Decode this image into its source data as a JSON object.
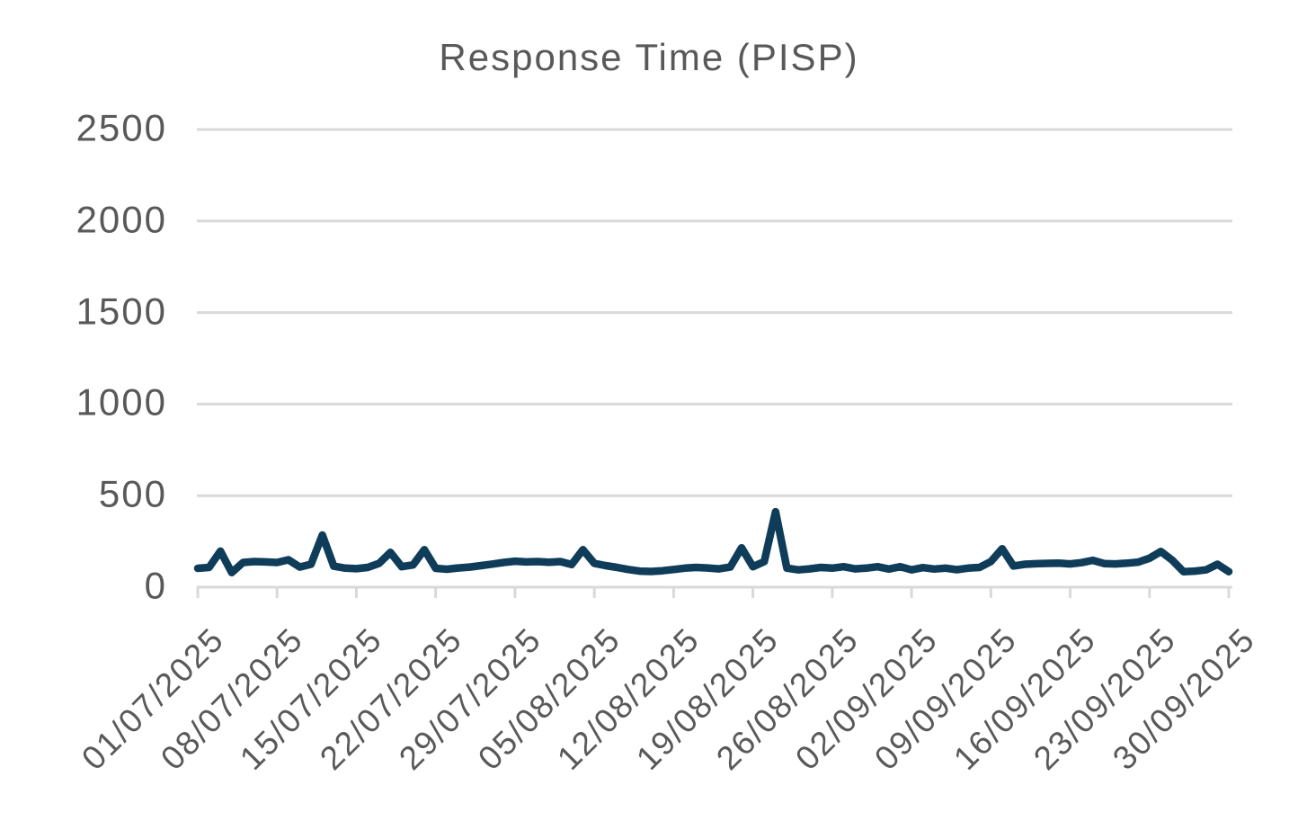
{
  "title": "Response Time (PISP)",
  "colors": {
    "background": "#ffffff",
    "title_text": "#595959",
    "axis_label_text": "#595959",
    "gridline": "#d9d9d9",
    "axis_line": "#d9d9d9",
    "series_line": "#0e3c59"
  },
  "chart_data": {
    "type": "line",
    "title": "Response Time (PISP)",
    "xlabel": "",
    "ylabel": "",
    "ylim": [
      0,
      2500
    ],
    "y_ticks": [
      0,
      500,
      1000,
      1500,
      2000,
      2500
    ],
    "grid": "horizontal",
    "legend": "none",
    "x_label_rotation_deg": 45,
    "x_tick_interval_days": 7,
    "x_tick_labels": [
      "01/07/2025",
      "08/07/2025",
      "15/07/2025",
      "22/07/2025",
      "29/07/2025",
      "05/08/2025",
      "12/08/2025",
      "19/08/2025",
      "26/08/2025",
      "02/09/2025",
      "09/09/2025",
      "16/09/2025",
      "23/09/2025",
      "30/09/2025"
    ],
    "x": [
      "01/07/2025",
      "02/07/2025",
      "03/07/2025",
      "04/07/2025",
      "05/07/2025",
      "06/07/2025",
      "07/07/2025",
      "08/07/2025",
      "09/07/2025",
      "10/07/2025",
      "11/07/2025",
      "12/07/2025",
      "13/07/2025",
      "14/07/2025",
      "15/07/2025",
      "16/07/2025",
      "17/07/2025",
      "18/07/2025",
      "19/07/2025",
      "20/07/2025",
      "21/07/2025",
      "22/07/2025",
      "23/07/2025",
      "24/07/2025",
      "25/07/2025",
      "26/07/2025",
      "27/07/2025",
      "28/07/2025",
      "29/07/2025",
      "30/07/2025",
      "31/07/2025",
      "01/08/2025",
      "02/08/2025",
      "03/08/2025",
      "04/08/2025",
      "05/08/2025",
      "06/08/2025",
      "07/08/2025",
      "08/08/2025",
      "09/08/2025",
      "10/08/2025",
      "11/08/2025",
      "12/08/2025",
      "13/08/2025",
      "14/08/2025",
      "15/08/2025",
      "16/08/2025",
      "17/08/2025",
      "18/08/2025",
      "19/08/2025",
      "20/08/2025",
      "21/08/2025",
      "22/08/2025",
      "23/08/2025",
      "24/08/2025",
      "25/08/2025",
      "26/08/2025",
      "27/08/2025",
      "28/08/2025",
      "29/08/2025",
      "30/08/2025",
      "31/08/2025",
      "01/09/2025",
      "02/09/2025",
      "03/09/2025",
      "04/09/2025",
      "05/09/2025",
      "06/09/2025",
      "07/09/2025",
      "08/09/2025",
      "09/09/2025",
      "10/09/2025",
      "11/09/2025",
      "12/09/2025",
      "13/09/2025",
      "14/09/2025",
      "15/09/2025",
      "16/09/2025",
      "17/09/2025",
      "18/09/2025",
      "19/09/2025",
      "20/09/2025",
      "21/09/2025",
      "22/09/2025",
      "23/09/2025",
      "24/09/2025",
      "25/09/2025",
      "26/09/2025",
      "27/09/2025",
      "28/09/2025",
      "29/09/2025",
      "30/09/2025"
    ],
    "series": [
      {
        "name": "Response Time (PISP)",
        "values": [
          103,
          108,
          197,
          80,
          135,
          140,
          138,
          135,
          150,
          110,
          125,
          285,
          115,
          104,
          101,
          108,
          130,
          190,
          112,
          122,
          205,
          103,
          98,
          105,
          110,
          118,
          126,
          135,
          142,
          138,
          140,
          136,
          140,
          124,
          205,
          130,
          118,
          108,
          97,
          88,
          86,
          90,
          97,
          104,
          108,
          105,
          100,
          110,
          215,
          112,
          140,
          412,
          104,
          95,
          100,
          108,
          104,
          112,
          100,
          104,
          112,
          99,
          112,
          95,
          107,
          99,
          104,
          96,
          104,
          108,
          140,
          210,
          116,
          125,
          128,
          130,
          131,
          127,
          134,
          147,
          129,
          127,
          131,
          137,
          158,
          195,
          148,
          85,
          88,
          95,
          125,
          85
        ]
      }
    ]
  }
}
